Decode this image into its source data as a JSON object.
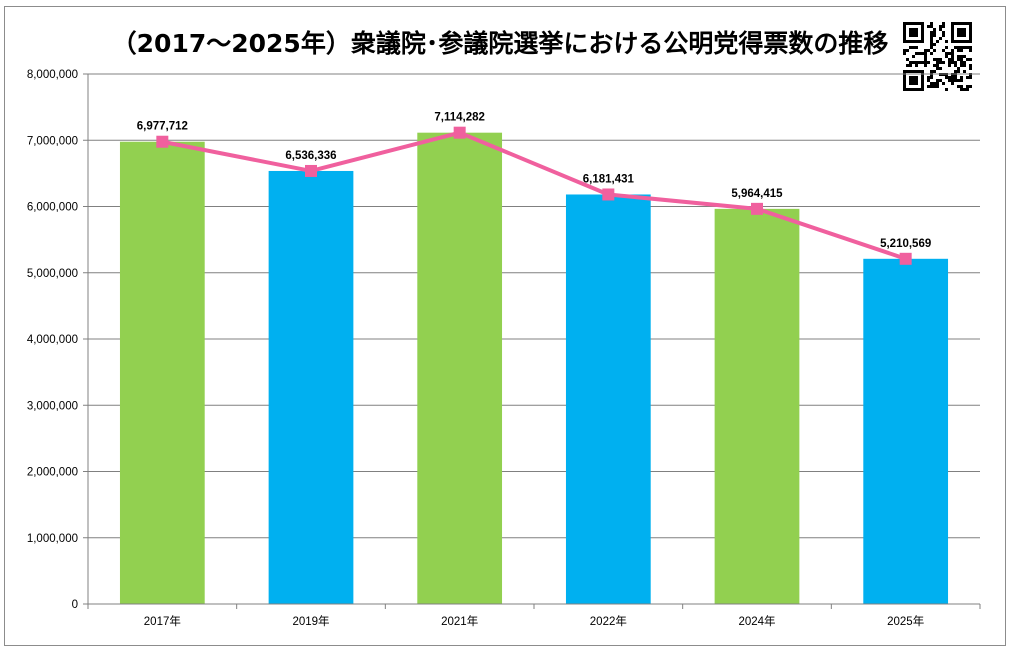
{
  "chart_data": {
    "type": "bar",
    "title": "（2017～2025年）衆議院･参議院選挙における公明党得票数の推移",
    "categories": [
      "2017年",
      "2019年",
      "2021年",
      "2022年",
      "2024年",
      "2025年"
    ],
    "values": [
      6977712,
      6536336,
      7114282,
      6181431,
      5964415,
      5210569
    ],
    "value_labels": [
      "6,977,712",
      "6,536,336",
      "7,114,282",
      "6,181,431",
      "5,964,415",
      "5,210,569"
    ],
    "yticks": [
      "0",
      "1,000,000",
      "2,000,000",
      "3,000,000",
      "4,000,000",
      "5,000,000",
      "6,000,000",
      "7,000,000",
      "8,000,000"
    ],
    "ylim": [
      0,
      8000000
    ],
    "grid": true,
    "line_overlay": true,
    "colors": {
      "bar_green": "#92d050",
      "bar_blue": "#00b0f0",
      "bar_pattern": [
        "#92d050",
        "#00b0f0",
        "#92d050",
        "#00b0f0",
        "#92d050",
        "#00b0f0"
      ],
      "line": "#f0609e",
      "marker": "#f0609e",
      "grid": "#808080"
    }
  },
  "qr_icon": "qr-code-icon"
}
